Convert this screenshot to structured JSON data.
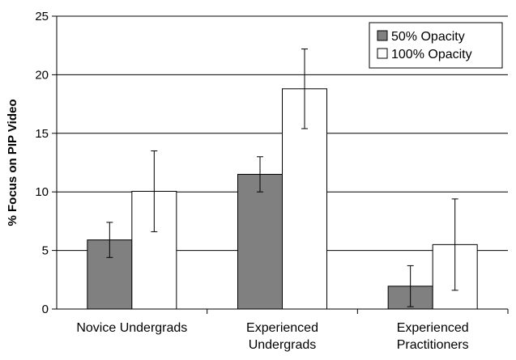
{
  "chart_data": {
    "type": "bar",
    "title": "",
    "xlabel": "",
    "ylabel": "% Focus on PIP Video",
    "ylim": [
      0,
      25
    ],
    "yticks": [
      0,
      5,
      10,
      15,
      20,
      25
    ],
    "grid": true,
    "legend_position": "top-right",
    "categories": [
      [
        "Novice Undergrads"
      ],
      [
        "Experienced",
        "Undergrads"
      ],
      [
        "Experienced",
        "Practitioners"
      ]
    ],
    "series": [
      {
        "name": "50% Opacity",
        "color": "#808080",
        "values": [
          5.9,
          11.5,
          1.95
        ],
        "error_low": [
          4.4,
          10.0,
          0.2
        ],
        "error_high": [
          7.4,
          13.0,
          3.7
        ]
      },
      {
        "name": "100% Opacity",
        "color": "#ffffff",
        "values": [
          10.05,
          18.8,
          5.5
        ],
        "error_low": [
          6.6,
          15.4,
          1.6
        ],
        "error_high": [
          13.5,
          22.2,
          9.4
        ]
      }
    ]
  }
}
